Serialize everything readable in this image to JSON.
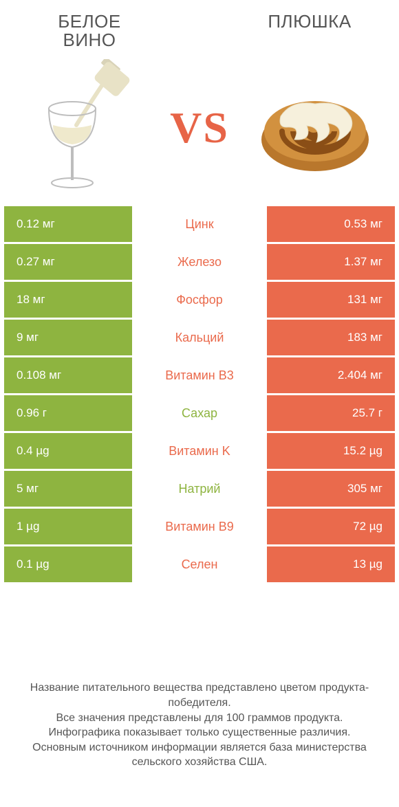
{
  "colors": {
    "left": "#8eb440",
    "right": "#ea6a4c",
    "vs": "#e76447",
    "text": "#555555",
    "bg": "#ffffff"
  },
  "left_title": "БЕЛОЕ\nВИНО",
  "right_title": "ПЛЮШКА",
  "vs": "VS",
  "rows": [
    {
      "left": "0.12 мг",
      "label": "Цинк",
      "right": "0.53 мг",
      "winner": "right"
    },
    {
      "left": "0.27 мг",
      "label": "Железо",
      "right": "1.37 мг",
      "winner": "right"
    },
    {
      "left": "18 мг",
      "label": "Фосфор",
      "right": "131 мг",
      "winner": "right"
    },
    {
      "left": "9 мг",
      "label": "Кальций",
      "right": "183 мг",
      "winner": "right"
    },
    {
      "left": "0.108 мг",
      "label": "Витамин B3",
      "right": "2.404 мг",
      "winner": "right"
    },
    {
      "left": "0.96 г",
      "label": "Сахар",
      "right": "25.7 г",
      "winner": "left"
    },
    {
      "left": "0.4 µg",
      "label": "Витамин K",
      "right": "15.2 µg",
      "winner": "right"
    },
    {
      "left": "5 мг",
      "label": "Натрий",
      "right": "305 мг",
      "winner": "left"
    },
    {
      "left": "1 µg",
      "label": "Витамин B9",
      "right": "72 µg",
      "winner": "right"
    },
    {
      "left": "0.1 µg",
      "label": "Селен",
      "right": "13 µg",
      "winner": "right"
    }
  ],
  "footer": "Название питательного вещества представлено цветом продукта-победителя.\nВсе значения представлены для 100 граммов продукта.\nИнфографика показывает только существенные различия.\nОсновным источником информации является база министерства сельского хозяйства США."
}
